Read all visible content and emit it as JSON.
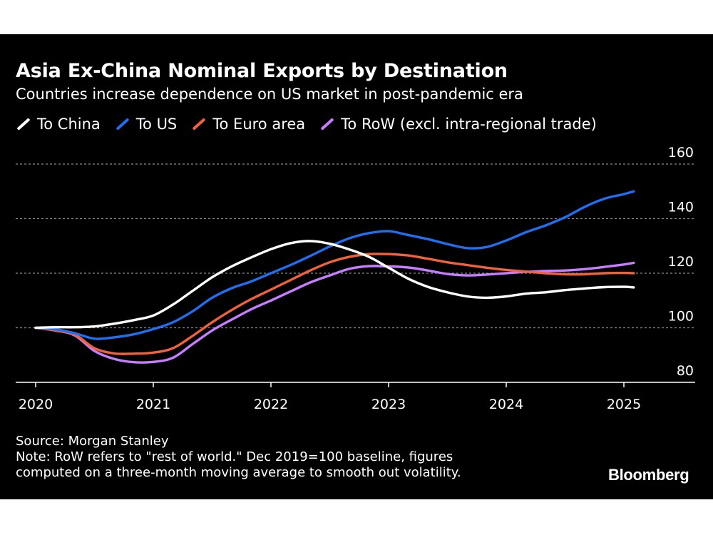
{
  "colors": {
    "background": "#000000",
    "text": "#ffffff",
    "grid": "#8a8a8a",
    "axis": "#ffffff"
  },
  "footer": {
    "source": "Source: Morgan Stanley",
    "note_line1": "Note: RoW refers to \"rest of world.\" Dec 2019=100 baseline, figures",
    "note_line2": "computed on a three-month moving average to smooth out volatility."
  },
  "branding": {
    "logo": "Bloomberg"
  },
  "chart_data": {
    "type": "line",
    "title": "Asia Ex-China Nominal Exports by Destination",
    "subtitle": "Countries increase dependence on US market in post-pandemic era",
    "xlabel": "",
    "ylabel": "",
    "x_ticks": [
      "2020",
      "2021",
      "2022",
      "2023",
      "2024",
      "2025"
    ],
    "y_ticks": [
      80,
      100,
      120,
      140,
      160
    ],
    "ylim": [
      80,
      160
    ],
    "xlim": [
      "2020-01",
      "2025-08"
    ],
    "grid": true,
    "legend_position": "top-left",
    "x": [
      "2020-01",
      "2020-03",
      "2020-05",
      "2020-07",
      "2020-09",
      "2020-11",
      "2021-01",
      "2021-03",
      "2021-05",
      "2021-07",
      "2021-09",
      "2021-11",
      "2022-01",
      "2022-03",
      "2022-05",
      "2022-07",
      "2022-09",
      "2022-11",
      "2023-01",
      "2023-03",
      "2023-05",
      "2023-07",
      "2023-09",
      "2023-11",
      "2024-01",
      "2024-03",
      "2024-05",
      "2024-07",
      "2024-09",
      "2024-11",
      "2025-01",
      "2025-02"
    ],
    "series": [
      {
        "name": "To China",
        "color": "#ffffff",
        "values": [
          100,
          100.2,
          100.2,
          100.5,
          101.5,
          102.8,
          104.5,
          108.5,
          113.5,
          118.5,
          122.5,
          125.8,
          128.8,
          131,
          131.8,
          130.8,
          128.7,
          126,
          122,
          118,
          115,
          113,
          111.5,
          111,
          111.5,
          112.5,
          113,
          113.8,
          114.4,
          114.9,
          115,
          114.8
        ]
      },
      {
        "name": "To US",
        "color": "#1f6ff0",
        "values": [
          100,
          99.5,
          98,
          96,
          96.5,
          97.6,
          99.5,
          102,
          106,
          111,
          114.5,
          117,
          120,
          123,
          126.3,
          129.8,
          132.8,
          134.7,
          135.4,
          134,
          132.5,
          130.7,
          129.2,
          129.6,
          132,
          135,
          137.5,
          140.5,
          144.3,
          147.3,
          149,
          150
        ]
      },
      {
        "name": "To Euro area",
        "color": "#f0623e",
        "values": [
          100,
          99,
          97.5,
          92.5,
          90.6,
          90.5,
          90.9,
          92.5,
          97,
          102,
          106.5,
          110.5,
          114,
          117.5,
          121,
          124,
          126,
          127,
          127,
          126.5,
          125.3,
          124,
          123,
          122,
          121.2,
          120.6,
          120,
          119.6,
          119.6,
          120,
          120.1,
          120
        ]
      },
      {
        "name": "To RoW (excl. intra-regional trade)",
        "color": "#c77dff",
        "values": [
          100,
          99,
          97.2,
          91.5,
          88.6,
          87.4,
          87.5,
          89,
          94,
          99,
          103,
          106.8,
          110,
          113.3,
          116.6,
          119.2,
          121.6,
          122.6,
          122.5,
          122.1,
          121,
          119.7,
          119.2,
          119.5,
          120,
          120.5,
          120.8,
          121,
          121.5,
          122.3,
          123.2,
          123.8
        ]
      }
    ]
  }
}
